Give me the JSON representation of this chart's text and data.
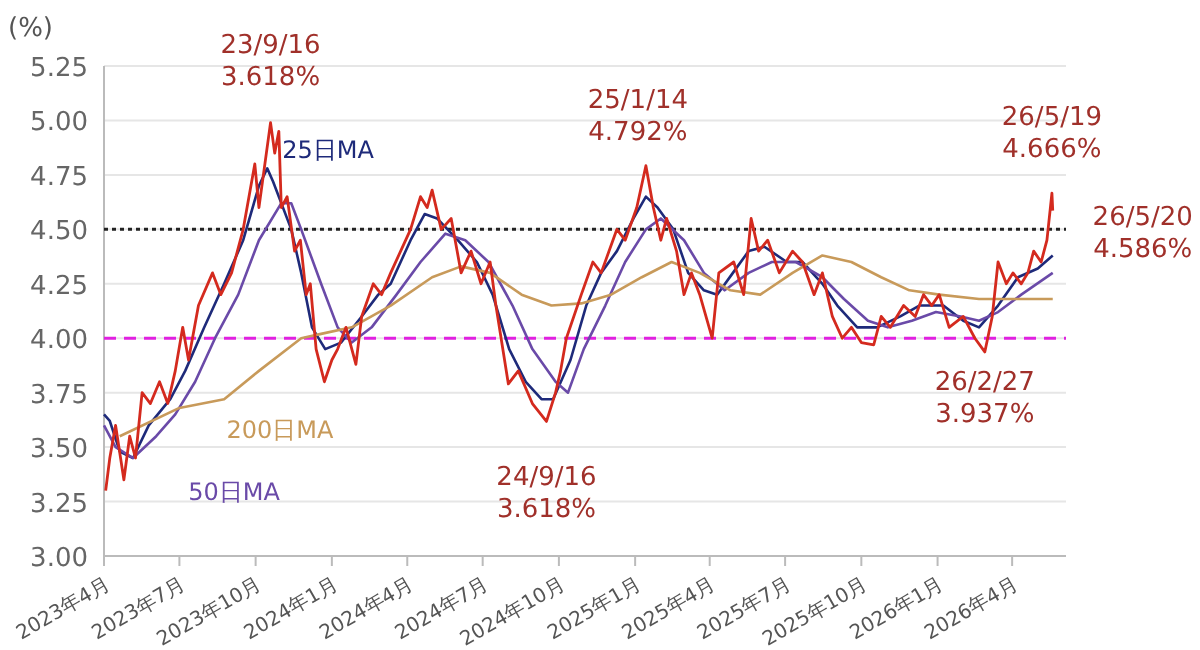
{
  "chart_data": {
    "type": "line",
    "ylabel": "(%)",
    "ylim": [
      3,
      5.25
    ],
    "yticks": [
      {
        "value": 3,
        "label": "3.00"
      },
      3.25,
      {
        "value": 3.5,
        "label": "3.50"
      },
      3.75,
      {
        "value": 4,
        "label": "4.00"
      },
      4.25,
      {
        "value": 4.5,
        "label": "4.50"
      },
      4.75,
      {
        "value": 5,
        "label": "5.00"
      },
      5.25
    ],
    "xlim": [
      "2023-04-01",
      "2026-06-05"
    ],
    "xticks": [
      {
        "value": "2023-04-01",
        "label": "2023年4月"
      },
      {
        "value": "2023-07-01",
        "label": "2023年7月"
      },
      {
        "value": "2023-10-01",
        "label": "2023年10月"
      },
      {
        "value": "2024-01-01",
        "label": "2024年1月"
      },
      {
        "value": "2024-04-01",
        "label": "2024年4月"
      },
      {
        "value": "2024-07-01",
        "label": "2024年7月"
      },
      {
        "value": "2024-10-01",
        "label": "2024年10月"
      },
      {
        "value": "2025-01-01",
        "label": "2025年1月"
      },
      {
        "value": "2025-04-01",
        "label": "2025年4月"
      },
      {
        "value": "2025-07-01",
        "label": "2025年7月"
      },
      {
        "value": "2025-10-01",
        "label": "2025年10月"
      },
      {
        "value": "2026-01-01",
        "label": "2026年1月"
      },
      {
        "value": "2026-04-01",
        "label": "2026年4月"
      }
    ],
    "grid": "y",
    "legend": false,
    "marker": "none",
    "line_style": "solid",
    "ref_lines": [
      {
        "axis": "y",
        "value": 4.5,
        "label": null,
        "color": "#222222",
        "line_style": "dotted"
      },
      {
        "axis": "y",
        "value": 4.0,
        "label": null,
        "color": "#e020e0",
        "line_style": "dashed"
      }
    ],
    "series": [
      {
        "color": "#d42a1e",
        "x": [
          "2023-04-03",
          "2023-04-08",
          "2023-04-15",
          "2023-04-25",
          "2023-05-02",
          "2023-05-09",
          "2023-05-17",
          "2023-05-27",
          "2023-06-07",
          "2023-06-17",
          "2023-06-26",
          "2023-07-05",
          "2023-07-12",
          "2023-07-24",
          "2023-08-10",
          "2023-08-20",
          "2023-09-02",
          "2023-09-16",
          "2023-09-30",
          "2023-10-05",
          "2023-10-19",
          "2023-10-24",
          "2023-10-29",
          "2023-11-01",
          "2023-11-08",
          "2023-11-17",
          "2023-11-24",
          "2023-12-01",
          "2023-12-06",
          "2023-12-13",
          "2023-12-23",
          "2024-01-01",
          "2024-01-08",
          "2024-01-18",
          "2024-01-30",
          "2024-02-06",
          "2024-02-20",
          "2024-03-01",
          "2024-03-12",
          "2024-04-05",
          "2024-04-17",
          "2024-04-25",
          "2024-05-01",
          "2024-05-12",
          "2024-05-24",
          "2024-06-05",
          "2024-06-17",
          "2024-06-29",
          "2024-07-10",
          "2024-07-17",
          "2024-08-01",
          "2024-08-13",
          "2024-08-30",
          "2024-09-16",
          "2024-09-27",
          "2024-10-03",
          "2024-10-10",
          "2024-10-28",
          "2024-11-11",
          "2024-11-21",
          "2024-12-10",
          "2024-12-20",
          "2025-01-03",
          "2025-01-14",
          "2025-01-23",
          "2025-02-01",
          "2025-02-08",
          "2025-02-20",
          "2025-03-01",
          "2025-03-10",
          "2025-03-20",
          "2025-04-04",
          "2025-04-12",
          "2025-04-30",
          "2025-05-12",
          "2025-05-21",
          "2025-05-30",
          "2025-06-10",
          "2025-06-24",
          "2025-07-10",
          "2025-07-22",
          "2025-08-05",
          "2025-08-15",
          "2025-08-27",
          "2025-09-08",
          "2025-09-19",
          "2025-10-01",
          "2025-10-16",
          "2025-10-25",
          "2025-11-05",
          "2025-11-21",
          "2025-12-05",
          "2025-12-15",
          "2025-12-25",
          "2026-01-03",
          "2026-01-15",
          "2026-02-01",
          "2026-02-15",
          "2026-02-27",
          "2026-03-08",
          "2026-03-15",
          "2026-03-25",
          "2026-04-02",
          "2026-04-12",
          "2026-04-20",
          "2026-04-27",
          "2026-05-06",
          "2026-05-13",
          "2026-05-19",
          "2026-05-20"
        ],
        "values": [
          3.3,
          3.45,
          3.6,
          3.35,
          3.55,
          3.45,
          3.75,
          3.7,
          3.8,
          3.7,
          3.85,
          4.05,
          3.9,
          4.15,
          4.3,
          4.2,
          4.3,
          4.5,
          4.8,
          4.6,
          4.99,
          4.85,
          4.95,
          4.6,
          4.65,
          4.4,
          4.45,
          4.2,
          4.25,
          3.95,
          3.8,
          3.9,
          3.95,
          4.05,
          3.88,
          4.1,
          4.25,
          4.2,
          4.3,
          4.5,
          4.65,
          4.6,
          4.68,
          4.5,
          4.55,
          4.3,
          4.4,
          4.25,
          4.35,
          4.15,
          3.79,
          3.85,
          3.7,
          3.618,
          3.75,
          3.85,
          4.0,
          4.2,
          4.35,
          4.3,
          4.5,
          4.45,
          4.6,
          4.792,
          4.6,
          4.45,
          4.55,
          4.4,
          4.2,
          4.3,
          4.2,
          4.0,
          4.3,
          4.35,
          4.2,
          4.55,
          4.4,
          4.45,
          4.3,
          4.4,
          4.35,
          4.2,
          4.3,
          4.1,
          4.0,
          4.05,
          3.98,
          3.97,
          4.1,
          4.05,
          4.15,
          4.1,
          4.2,
          4.15,
          4.2,
          4.05,
          4.1,
          4.0,
          3.937,
          4.1,
          4.35,
          4.25,
          4.3,
          4.25,
          4.3,
          4.4,
          4.35,
          4.45,
          4.666,
          4.586
        ]
      },
      {
        "name": "25日MA",
        "color": "#1e2a7a",
        "x": [
          "2023-04-01",
          "2023-04-08",
          "2023-04-20",
          "2023-05-06",
          "2023-05-25",
          "2023-06-20",
          "2023-07-08",
          "2023-07-31",
          "2023-08-24",
          "2023-09-16",
          "2023-10-05",
          "2023-10-15",
          "2023-10-22",
          "2023-11-13",
          "2023-11-25",
          "2023-12-08",
          "2023-12-24",
          "2024-01-12",
          "2024-02-06",
          "2024-02-26",
          "2024-03-12",
          "2024-04-05",
          "2024-04-22",
          "2024-05-07",
          "2024-06-01",
          "2024-06-24",
          "2024-07-13",
          "2024-08-02",
          "2024-08-22",
          "2024-09-10",
          "2024-09-24",
          "2024-10-15",
          "2024-11-03",
          "2024-11-21",
          "2024-12-10",
          "2024-12-30",
          "2025-01-14",
          "2025-01-28",
          "2025-02-16",
          "2025-03-06",
          "2025-03-25",
          "2025-04-10",
          "2025-04-29",
          "2025-05-18",
          "2025-06-06",
          "2025-07-03",
          "2025-07-22",
          "2025-08-15",
          "2025-09-02",
          "2025-09-26",
          "2025-10-20",
          "2025-11-17",
          "2025-12-10",
          "2026-01-08",
          "2026-02-01",
          "2026-02-20",
          "2026-03-15",
          "2026-04-08",
          "2026-05-02",
          "2026-05-20"
        ],
        "values": [
          3.65,
          3.62,
          3.48,
          3.45,
          3.6,
          3.72,
          3.85,
          4.05,
          4.25,
          4.45,
          4.7,
          4.78,
          4.72,
          4.5,
          4.3,
          4.05,
          3.95,
          3.98,
          4.1,
          4.2,
          4.25,
          4.45,
          4.57,
          4.55,
          4.45,
          4.35,
          4.2,
          3.95,
          3.8,
          3.72,
          3.72,
          3.9,
          4.15,
          4.3,
          4.4,
          4.55,
          4.65,
          4.6,
          4.5,
          4.3,
          4.22,
          4.2,
          4.3,
          4.4,
          4.42,
          4.35,
          4.35,
          4.25,
          4.15,
          4.05,
          4.05,
          4.1,
          4.15,
          4.15,
          4.08,
          4.05,
          4.15,
          4.28,
          4.32,
          4.38
        ]
      },
      {
        "name": "50日MA",
        "color": "#6a4aa8",
        "x": [
          "2023-04-01",
          "2023-04-15",
          "2023-05-06",
          "2023-06-03",
          "2023-06-26",
          "2023-07-20",
          "2023-08-13",
          "2023-09-10",
          "2023-10-05",
          "2023-11-01",
          "2023-11-13",
          "2023-11-25",
          "2023-12-19",
          "2024-01-08",
          "2024-01-25",
          "2024-02-18",
          "2024-03-19",
          "2024-04-17",
          "2024-05-17",
          "2024-06-10",
          "2024-07-08",
          "2024-08-06",
          "2024-08-30",
          "2024-09-27",
          "2024-10-12",
          "2024-10-31",
          "2024-11-26",
          "2024-12-20",
          "2025-01-14",
          "2025-02-01",
          "2025-03-01",
          "2025-03-25",
          "2025-04-19",
          "2025-05-18",
          "2025-06-15",
          "2025-07-14",
          "2025-08-15",
          "2025-09-10",
          "2025-10-09",
          "2025-11-02",
          "2025-12-01",
          "2025-12-30",
          "2026-01-29",
          "2026-02-20",
          "2026-03-15",
          "2026-04-12",
          "2026-05-20"
        ],
        "values": [
          3.6,
          3.5,
          3.45,
          3.55,
          3.65,
          3.8,
          4.0,
          4.2,
          4.45,
          4.62,
          4.62,
          4.5,
          4.25,
          4.05,
          3.98,
          4.05,
          4.2,
          4.35,
          4.48,
          4.45,
          4.35,
          4.15,
          3.95,
          3.8,
          3.75,
          3.95,
          4.15,
          4.35,
          4.5,
          4.55,
          4.45,
          4.3,
          4.22,
          4.3,
          4.35,
          4.35,
          4.28,
          4.18,
          4.08,
          4.05,
          4.08,
          4.12,
          4.1,
          4.08,
          4.12,
          4.2,
          4.3
        ]
      },
      {
        "name": "200日MA",
        "color": "#c89a5a",
        "x": [
          "2023-04-20",
          "2023-07-01",
          "2023-08-24",
          "2023-10-05",
          "2023-11-25",
          "2023-12-19",
          "2024-01-25",
          "2024-03-12",
          "2024-05-01",
          "2024-06-05",
          "2024-07-10",
          "2024-08-17",
          "2024-09-22",
          "2024-10-28",
          "2024-12-03",
          "2025-01-09",
          "2025-02-14",
          "2025-03-20",
          "2025-04-26",
          "2025-06-01",
          "2025-07-10",
          "2025-08-15",
          "2025-09-19",
          "2025-10-25",
          "2025-11-28",
          "2026-01-03",
          "2026-02-20",
          "2026-04-08",
          "2026-05-20"
        ],
        "values": [
          3.55,
          3.68,
          3.72,
          3.85,
          4.0,
          4.02,
          4.05,
          4.15,
          4.28,
          4.33,
          4.3,
          4.2,
          4.15,
          4.16,
          4.2,
          4.28,
          4.35,
          4.3,
          4.22,
          4.2,
          4.3,
          4.38,
          4.35,
          4.28,
          4.22,
          4.2,
          4.18,
          4.18,
          4.18
        ]
      }
    ],
    "annotations": [
      {
        "text": "23/9/16\n3.618%",
        "x": "2023-10-19",
        "y": 4.99
      },
      {
        "text": "25/1/14\n4.792%",
        "x": "2025-01-14",
        "y": 4.792
      },
      {
        "text": "26/5/19\n4.666%",
        "x": "2026-05-19",
        "y": 4.666
      },
      {
        "text": "26/5/20\n4.586%",
        "x": "2026-05-20",
        "y": 4.586
      },
      {
        "text": "24/9/16\n3.618%",
        "x": "2024-09-16",
        "y": 3.618
      },
      {
        "text": "26/2/27\n3.937%",
        "x": "2026-02-27",
        "y": 3.937
      }
    ]
  }
}
